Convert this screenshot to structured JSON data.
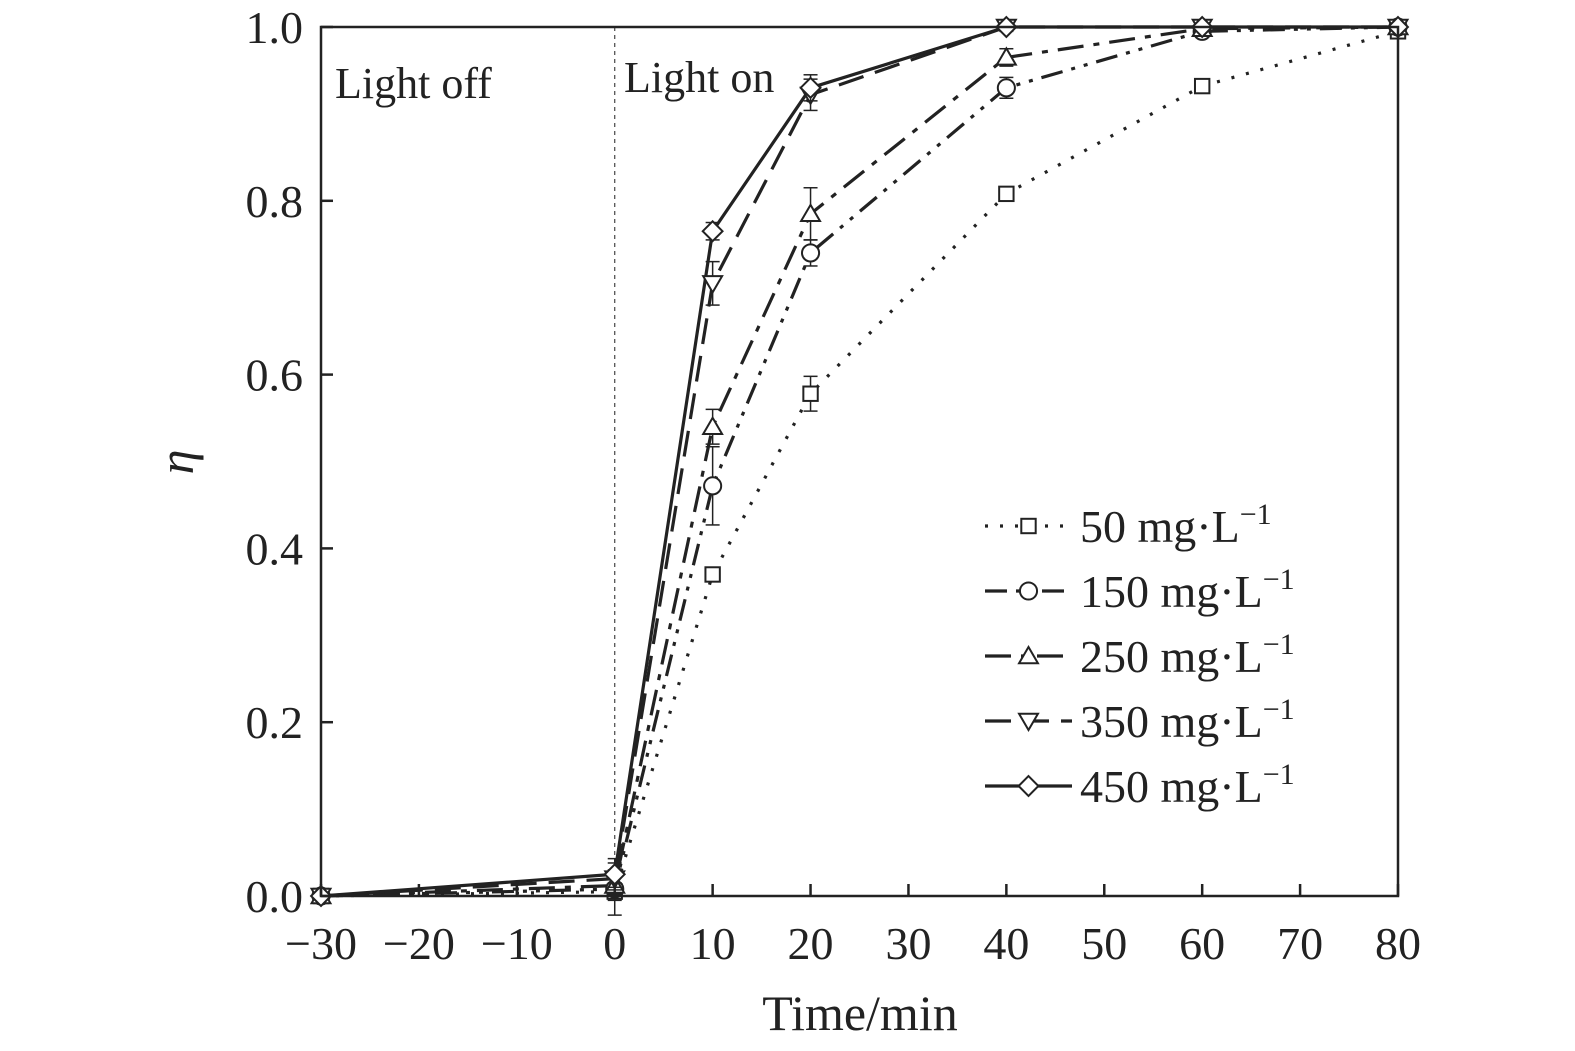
{
  "chart_data": {
    "type": "line",
    "xlabel": "Time/min",
    "ylabel": "η",
    "xlim": [
      -30,
      80
    ],
    "ylim": [
      0.0,
      1.0
    ],
    "x_ticks": [
      "−30",
      "−20",
      "−10",
      "0",
      "10",
      "20",
      "30",
      "40",
      "50",
      "60",
      "70",
      "80"
    ],
    "y_ticks": [
      "0.0",
      "0.2",
      "0.4",
      "0.6",
      "0.8",
      "1.0"
    ],
    "grid": false,
    "legend_placement": "lower-right",
    "annotations": [
      {
        "text": "Light off"
      },
      {
        "text": "Light on"
      }
    ],
    "divider_x": 0,
    "x": [
      -30,
      0,
      10,
      20,
      40,
      60,
      80
    ],
    "series": [
      {
        "name_value": "50",
        "name_unit": "mg·L",
        "name_exp": "−1",
        "marker": "square",
        "dash": "dotted",
        "values": [
          0.0,
          0.005,
          0.37,
          0.578,
          0.808,
          0.932,
          0.995
        ],
        "errors": [
          0.0,
          0.01,
          0.008,
          0.02,
          0.008,
          0.008,
          0.005
        ]
      },
      {
        "name_value": "150",
        "name_unit": "mg·L",
        "name_exp": "−1",
        "marker": "circle",
        "dash": "dash-dot-dot",
        "values": [
          0.0,
          0.008,
          0.472,
          0.74,
          0.93,
          0.995,
          1.0
        ],
        "errors": [
          0.0,
          0.03,
          0.045,
          0.015,
          0.012,
          0.005,
          0.0
        ]
      },
      {
        "name_value": "250",
        "name_unit": "mg·L",
        "name_exp": "−1",
        "marker": "triangle-up",
        "dash": "dash-dot",
        "values": [
          0.0,
          0.012,
          0.54,
          0.785,
          0.965,
          0.998,
          1.0
        ],
        "errors": [
          0.0,
          0.01,
          0.02,
          0.03,
          0.01,
          0.005,
          0.0
        ]
      },
      {
        "name_value": "350",
        "name_unit": "mg·L",
        "name_exp": "−1",
        "marker": "triangle-down",
        "dash": "dashed",
        "values": [
          0.0,
          0.02,
          0.705,
          0.922,
          1.0,
          1.0,
          1.0
        ],
        "errors": [
          0.0,
          0.01,
          0.025,
          0.018,
          0.005,
          0.0,
          0.0
        ]
      },
      {
        "name_value": "450",
        "name_unit": "mg·L",
        "name_exp": "−1",
        "marker": "diamond",
        "dash": "solid",
        "values": [
          0.0,
          0.025,
          0.765,
          0.93,
          1.0,
          1.0,
          1.0
        ],
        "errors": [
          0.0,
          0.018,
          0.01,
          0.015,
          0.0,
          0.0,
          0.0
        ]
      }
    ]
  }
}
